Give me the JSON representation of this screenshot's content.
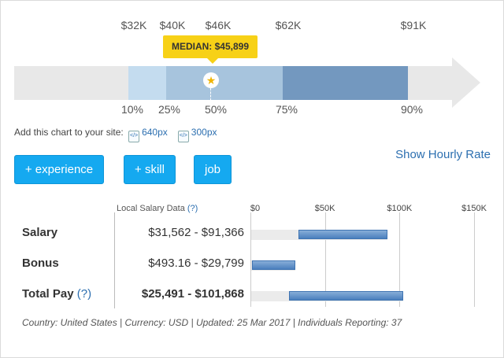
{
  "distribution": {
    "top_labels": [
      "$32K",
      "$40K",
      "$46K",
      "$62K",
      "$91K"
    ],
    "bottom_labels": [
      "10%",
      "25%",
      "50%",
      "75%",
      "90%"
    ],
    "median_label": "MEDIAN: $45,899",
    "colors": {
      "track": "#e8e8e8",
      "p10_25": "#c4dcef",
      "p25_75": "#a7c4dd",
      "p75_90": "#7398bf",
      "accent": "#f7d117"
    }
  },
  "share": {
    "prompt": "Add this chart to your site:",
    "links": [
      "640px",
      "300px"
    ]
  },
  "buttons": {
    "experience": "+ experience",
    "skill": "+ skill",
    "job": "job"
  },
  "hourly_link": "Show Hourly Rate",
  "table": {
    "header": "Local Salary Data",
    "help": "(?)",
    "axis": [
      "$0",
      "$50K",
      "$100K",
      "$150K"
    ],
    "axis_max": 150000,
    "rows": [
      {
        "label": "Salary",
        "range": "$31,562 - $91,366",
        "low": 31562,
        "high": 91366,
        "track_low": 0,
        "track_high": 91366
      },
      {
        "label": "Bonus",
        "range": "$493.16 - $29,799",
        "low": 493.16,
        "high": 29799,
        "track_low": 0,
        "track_high": 29799
      },
      {
        "label": "Total Pay",
        "help": "(?)",
        "range": "$25,491 - $101,868",
        "low": 25491,
        "high": 101868,
        "track_low": 0,
        "track_high": 101868
      }
    ]
  },
  "footer": "Country: United States | Currency: USD | Updated: 25 Mar 2017 | Individuals Reporting: 37"
}
